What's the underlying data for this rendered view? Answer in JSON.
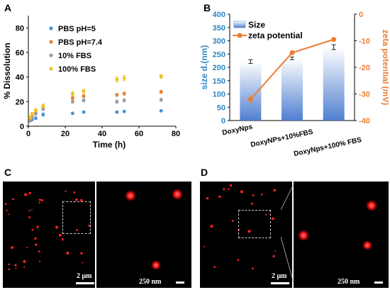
{
  "panels": {
    "A": {
      "letter": "A"
    },
    "B": {
      "letter": "B"
    },
    "C": {
      "letter": "C",
      "scale_main": "2 μm",
      "scale_inset": "250 nm"
    },
    "D": {
      "letter": "D",
      "scale_main": "2 μm",
      "scale_inset": "250 nm"
    }
  },
  "colors": {
    "pbs5": "#4a90d9",
    "pbs74": "#e8822f",
    "fbs10": "#9e9e9e",
    "fbs100": "#f2c21b",
    "bar": "#4f7fd0",
    "zeta": "#ed7d31",
    "left_axis": "#2e86c1",
    "right_axis": "#ed7d31",
    "micro_bg": "#000000",
    "spot": "#ff2020"
  },
  "chart_data": [
    {
      "type": "scatter",
      "xlabel": "Time (h)",
      "ylabel": "% Dissolution",
      "xlim": [
        0,
        80
      ],
      "ylim": [
        0,
        90
      ],
      "xticks": [
        0,
        20,
        40,
        60,
        80
      ],
      "yticks": [
        0,
        20,
        40,
        60,
        80
      ],
      "legend_position": "top-left",
      "series": [
        {
          "name": "PBS pH=5",
          "color_key": "pbs5",
          "x": [
            1,
            2,
            4,
            8,
            24,
            30,
            48,
            52,
            72
          ],
          "y": [
            4.5,
            5.5,
            6.5,
            9.5,
            10.5,
            11.5,
            11.5,
            12,
            12.5
          ],
          "err": [
            1,
            1,
            1,
            1.2,
            0.8,
            0.8,
            0.8,
            0.8,
            0.8
          ]
        },
        {
          "name": "PBS pH=7.4",
          "color_key": "pbs74",
          "x": [
            1,
            2,
            4,
            8,
            24,
            30,
            48,
            52,
            72
          ],
          "y": [
            6,
            8,
            11,
            15,
            23,
            24.5,
            25.5,
            26.5,
            28
          ],
          "err": [
            1,
            1,
            1,
            1.2,
            1.2,
            1.2,
            1.2,
            1.2,
            1.2
          ]
        },
        {
          "name": "10% FBS",
          "color_key": "fbs10",
          "x": [
            1,
            2,
            4,
            8,
            24,
            30,
            48,
            52,
            72
          ],
          "y": [
            5,
            7,
            10,
            14,
            20,
            21,
            20,
            21,
            21.5
          ],
          "err": [
            1,
            1,
            1,
            1.2,
            1.2,
            1.2,
            1.2,
            1.2,
            1.2
          ]
        },
        {
          "name": "100% FBS",
          "color_key": "fbs100",
          "x": [
            1,
            2,
            4,
            8,
            24,
            30,
            48,
            52,
            72
          ],
          "y": [
            7,
            10,
            13,
            16.5,
            26.5,
            28.5,
            38,
            39,
            40.5
          ],
          "err": [
            1.2,
            1.2,
            1.2,
            1.5,
            1.5,
            1.5,
            2,
            2,
            1.5
          ]
        }
      ]
    },
    {
      "type": "bar",
      "categories": [
        "DoxyNps",
        "DoxyNPs+10%FBS",
        "DoxyNps+100% FBS"
      ],
      "ylabel": "size d.(nm)",
      "y2label": "zeta potential (mV)",
      "ylim": [
        0,
        400
      ],
      "y2lim": [
        -40,
        0
      ],
      "yticks": [
        0,
        50,
        100,
        150,
        200,
        250,
        300,
        350,
        400
      ],
      "y2ticks": [
        0,
        -10,
        -20,
        -30,
        -40
      ],
      "legend_position": "top-left",
      "series": [
        {
          "name": "Size",
          "axis": "left",
          "values": [
            222,
            234,
            276
          ],
          "err": [
            7,
            5,
            9
          ]
        },
        {
          "name": "zeta potential",
          "axis": "right",
          "values": [
            -32,
            -14.5,
            -9.5
          ],
          "err": [
            1.5,
            0.5,
            0.7
          ]
        }
      ]
    }
  ]
}
